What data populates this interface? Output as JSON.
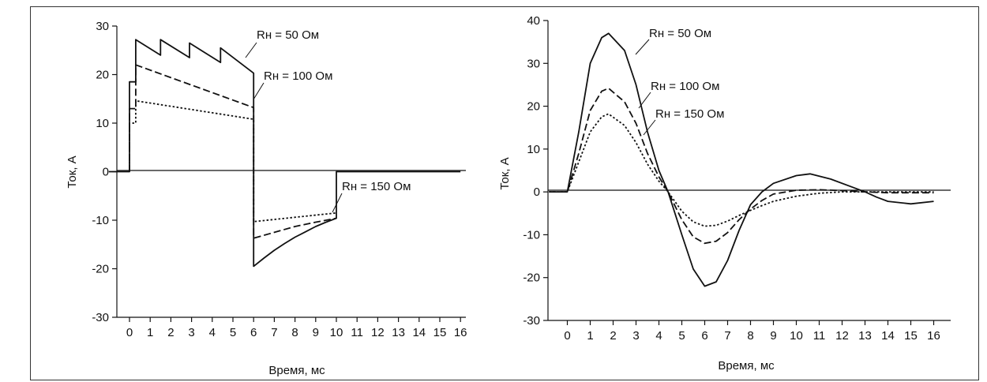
{
  "chart_data": [
    {
      "type": "line",
      "xlabel": "Время, мс",
      "ylabel": "Ток, А",
      "xlim": [
        0,
        16
      ],
      "ylim": [
        -30,
        30
      ],
      "xticks": [
        "0",
        "1",
        "2",
        "3",
        "4",
        "5",
        "6",
        "7",
        "8",
        "9",
        "10",
        "11",
        "12",
        "13",
        "14",
        "15",
        "16"
      ],
      "yticks": [
        "30",
        "20",
        "10",
        "0",
        "-10",
        "-20",
        "-30"
      ],
      "series": [
        {
          "name": "Rн = 50 Ом",
          "style": "solid",
          "x": [
            -1,
            0,
            0,
            0.2,
            0.3,
            0.3,
            1.5,
            1.5,
            2.9,
            2.9,
            4.4,
            4.4,
            6.0,
            6.0,
            6.5,
            7.0,
            7.5,
            8.0,
            8.5,
            9.0,
            9.5,
            10.0,
            10.0,
            16
          ],
          "y": [
            0,
            0,
            18.5,
            18.5,
            18.5,
            27.2,
            24.0,
            27.2,
            23.5,
            26.5,
            22.5,
            25.5,
            20.3,
            -19.5,
            -17.8,
            -16.2,
            -14.8,
            -13.5,
            -12.4,
            -11.3,
            -10.4,
            -9.6,
            0,
            0
          ]
        },
        {
          "name": "Rн = 100 Ом",
          "style": "dashed",
          "x": [
            0,
            0,
            0.2,
            0.3,
            0.3,
            6.0,
            6.0,
            7.0,
            8.0,
            9.0,
            10.0
          ],
          "y": [
            0,
            13.0,
            13.0,
            13.0,
            22.0,
            13.2,
            -13.7,
            -12.5,
            -11.3,
            -10.4,
            -9.6
          ]
        },
        {
          "name": "Rн = 150 Ом",
          "style": "dotted",
          "x": [
            0,
            0,
            0.2,
            0.3,
            0.3,
            6.0,
            6.0,
            10.0
          ],
          "y": [
            0,
            10.0,
            10.0,
            10.0,
            14.6,
            10.8,
            -10.3,
            -8.5
          ]
        }
      ],
      "annotations": [
        {
          "text": "Rн = 50 Ом",
          "series": "Rн = 50 Ом"
        },
        {
          "text": "Rн = 100 Ом",
          "series": "Rн = 100 Ом"
        },
        {
          "text": "Rн = 150 Ом",
          "series": "Rн = 150 Ом"
        }
      ]
    },
    {
      "type": "line",
      "xlabel": "Время, мс",
      "ylabel": "Ток, А",
      "xlim": [
        0,
        16
      ],
      "ylim": [
        -30,
        40
      ],
      "xticks": [
        "0",
        "1",
        "2",
        "3",
        "4",
        "5",
        "6",
        "7",
        "8",
        "9",
        "10",
        "11",
        "12",
        "13",
        "14",
        "15",
        "16"
      ],
      "yticks": [
        "40",
        "30",
        "20",
        "10",
        "0",
        "-10",
        "-20",
        "-30"
      ],
      "series": [
        {
          "name": "Rн = 50 Ом",
          "style": "solid",
          "x": [
            -0.8,
            0,
            0.5,
            1.0,
            1.5,
            1.8,
            2.5,
            3.0,
            3.5,
            4.0,
            4.4,
            5.0,
            5.5,
            6.0,
            6.5,
            7.0,
            7.5,
            8.0,
            8.5,
            9.0,
            10.0,
            10.6,
            11.5,
            12.5,
            13.0,
            13.5,
            14.0,
            15.0,
            16.0
          ],
          "y": [
            0,
            0,
            14,
            30,
            36,
            37,
            33,
            25,
            14,
            5,
            0,
            -10,
            -18,
            -22,
            -21,
            -16,
            -9,
            -3,
            0,
            2,
            3.8,
            4.2,
            3.0,
            1.0,
            0,
            -1.2,
            -2.2,
            -2.8,
            -2.2
          ]
        },
        {
          "name": "Rн = 100 Ом",
          "style": "dashed",
          "x": [
            -0.8,
            0,
            0.5,
            1.0,
            1.5,
            1.8,
            2.5,
            3.0,
            3.5,
            4.0,
            4.4,
            5.0,
            5.5,
            6.0,
            6.5,
            7.0,
            7.5,
            8.0,
            8.5,
            9.0,
            10.0,
            11.0,
            12.0,
            13.0,
            14.0,
            16.0
          ],
          "y": [
            0,
            0,
            9,
            19,
            23.5,
            24.2,
            21,
            16,
            9,
            3.5,
            0,
            -6.5,
            -10.5,
            -12,
            -11.5,
            -9.5,
            -6.5,
            -4.0,
            -2.0,
            -0.5,
            0.4,
            0.5,
            0.3,
            0,
            -0.2,
            -0.2
          ]
        },
        {
          "name": "Rн = 150 Ом",
          "style": "dotted",
          "x": [
            -0.8,
            0,
            0.5,
            1.0,
            1.5,
            1.8,
            2.5,
            3.0,
            3.5,
            4.0,
            4.4,
            5.0,
            5.5,
            6.0,
            6.5,
            7.0,
            7.5,
            8.0,
            8.5,
            9.0,
            10.0,
            11.0,
            12.0,
            13.0,
            14.0,
            16.0
          ],
          "y": [
            0,
            0,
            7,
            14,
            17.5,
            18.2,
            15.5,
            11.5,
            6.5,
            2.5,
            0,
            -4.5,
            -7.0,
            -8.0,
            -7.8,
            -6.8,
            -5.5,
            -4.3,
            -3.2,
            -2.2,
            -1.0,
            -0.3,
            0,
            0,
            0,
            0
          ]
        }
      ],
      "annotations": [
        {
          "text": "Rн = 50 Ом",
          "series": "Rн = 50 Ом"
        },
        {
          "text": "Rн = 100 Ом",
          "series": "Rн = 100 Ом"
        },
        {
          "text": "Rн = 150 Ом",
          "series": "Rн = 150 Ом"
        }
      ]
    }
  ]
}
